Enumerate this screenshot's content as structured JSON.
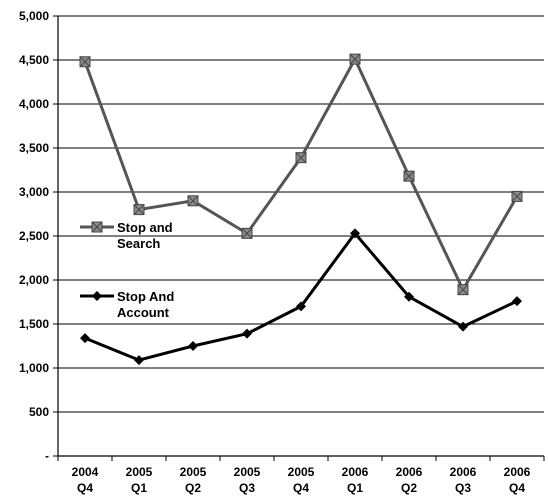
{
  "chart_data": {
    "type": "line",
    "categories": [
      [
        "2004",
        "Q4"
      ],
      [
        "2005",
        "Q1"
      ],
      [
        "2005",
        "Q2"
      ],
      [
        "2005",
        "Q3"
      ],
      [
        "2005",
        "Q4"
      ],
      [
        "2006",
        "Q1"
      ],
      [
        "2006",
        "Q2"
      ],
      [
        "2006",
        "Q3"
      ],
      [
        "2006",
        "Q4"
      ]
    ],
    "series": [
      {
        "name": "Stop and Search",
        "legend_lines": [
          "Stop and",
          "Search"
        ],
        "color": "#555555",
        "marker": "square-x",
        "values": [
          4480,
          2800,
          2900,
          2530,
          3390,
          4510,
          3180,
          1890,
          2950
        ]
      },
      {
        "name": "Stop And Account",
        "legend_lines": [
          "Stop And",
          "Account"
        ],
        "color": "#000000",
        "marker": "diamond",
        "values": [
          1340,
          1090,
          1250,
          1390,
          1700,
          2530,
          1810,
          1470,
          1760
        ]
      }
    ],
    "ylim": [
      0,
      5000
    ],
    "yticks": [
      {
        "value": 0,
        "label": "-"
      },
      {
        "value": 500,
        "label": "500"
      },
      {
        "value": 1000,
        "label": "1,000"
      },
      {
        "value": 1500,
        "label": "1,500"
      },
      {
        "value": 2000,
        "label": "2,000"
      },
      {
        "value": 2500,
        "label": "2,500"
      },
      {
        "value": 3000,
        "label": "3,000"
      },
      {
        "value": 3500,
        "label": "3,500"
      },
      {
        "value": 4000,
        "label": "4,000"
      },
      {
        "value": 4500,
        "label": "4,500"
      },
      {
        "value": 5000,
        "label": "5,000"
      }
    ],
    "grid": true,
    "legend_position": "left-middle",
    "title": "",
    "xlabel": "",
    "ylabel": ""
  }
}
